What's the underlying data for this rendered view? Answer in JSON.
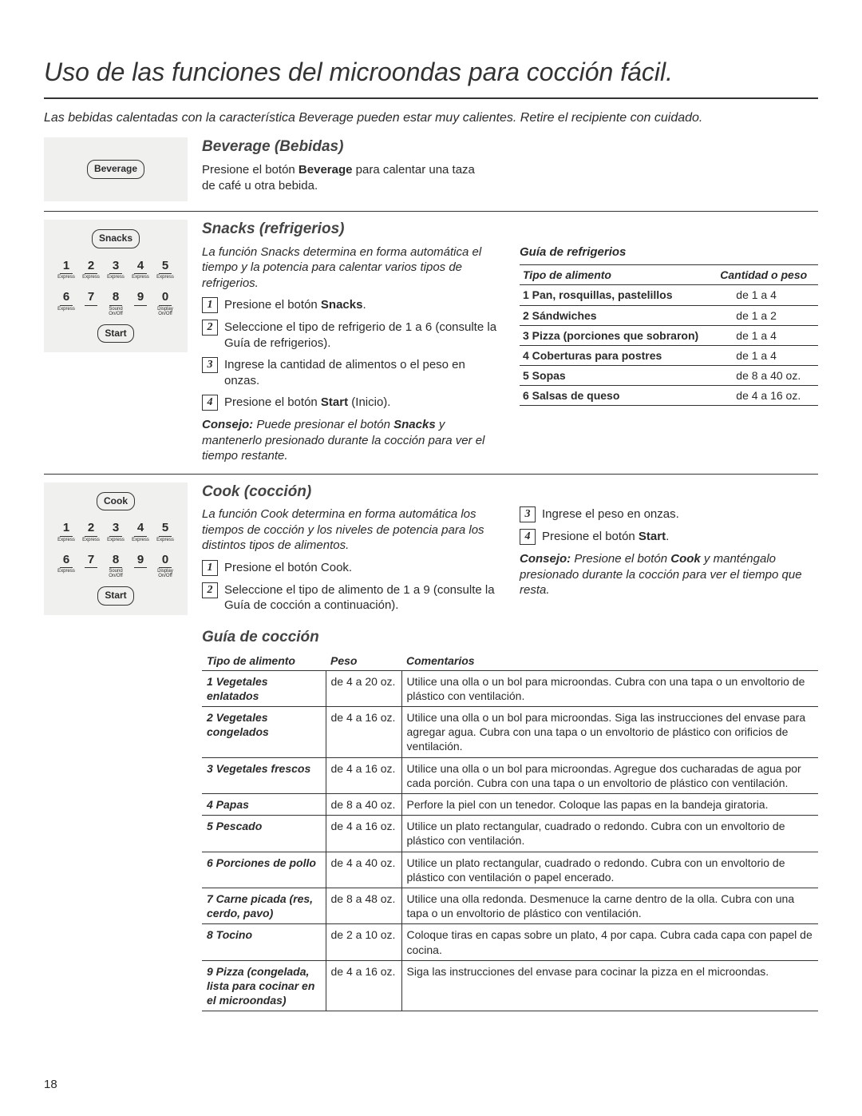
{
  "title": "Uso de las funciones del microondas para cocción fácil.",
  "warning": "Las bebidas calentadas con la característica Beverage pueden estar muy calientes. Retire el recipiente con cuidado.",
  "page_num": "18",
  "beverage": {
    "title": "Beverage (Bebidas)",
    "button": "Beverage",
    "text_pre": "Presione el botón ",
    "text_bold": "Beverage",
    "text_post": " para calentar una taza de café u otra bebida."
  },
  "snacks": {
    "title": "Snacks (refrigerios)",
    "button": "Snacks",
    "start": "Start",
    "intro": "La función Snacks determina en forma automática el tiempo y la potencia para calentar varios tipos de refrigerios.",
    "steps": [
      {
        "n": "1",
        "pre": "Presione el botón ",
        "bold": "Snacks",
        "post": "."
      },
      {
        "n": "2",
        "pre": "Seleccione el tipo de refrigerio de 1 a 6 (consulte la Guía de refrigerios).",
        "bold": "",
        "post": ""
      },
      {
        "n": "3",
        "pre": "Ingrese la cantidad de alimentos o el peso en onzas.",
        "bold": "",
        "post": ""
      },
      {
        "n": "4",
        "pre": "Presione el botón ",
        "bold": "Start",
        "post": " (Inicio)."
      }
    ],
    "consejo_label": "Consejo:",
    "consejo_pre": " Puede presionar el botón ",
    "consejo_bold": "Snacks",
    "consejo_post": " y mantenerlo presionado durante la cocción para ver el tiempo restante.",
    "guide_title": "Guía de refrigerios",
    "th1": "Tipo de alimento",
    "th2": "Cantidad o peso",
    "rows": [
      {
        "food": "1 Pan, rosquillas, pastelillos",
        "qty": "de 1 a 4"
      },
      {
        "food": "2 Sándwiches",
        "qty": "de 1 a 2"
      },
      {
        "food": "3 Pizza (porciones que sobraron)",
        "qty": "de 1 a 4"
      },
      {
        "food": "4 Coberturas para postres",
        "qty": "de 1 a 4"
      },
      {
        "food": "5 Sopas",
        "qty": "de 8 a 40 oz."
      },
      {
        "food": "6 Salsas de queso",
        "qty": "de 4 a 16 oz."
      }
    ]
  },
  "keypad": {
    "row1": [
      {
        "n": "1",
        "l": "Express"
      },
      {
        "n": "2",
        "l": "Express"
      },
      {
        "n": "3",
        "l": "Express"
      },
      {
        "n": "4",
        "l": "Express"
      },
      {
        "n": "5",
        "l": "Express"
      }
    ],
    "row2": [
      {
        "n": "6",
        "l": "Express"
      },
      {
        "n": "7",
        "l": ""
      },
      {
        "n": "8",
        "l": "Sound On/Off"
      },
      {
        "n": "9",
        "l": ""
      },
      {
        "n": "0",
        "l": "Display On/Off"
      }
    ]
  },
  "cook": {
    "title": "Cook (cocción)",
    "button": "Cook",
    "start": "Start",
    "intro": "La función Cook determina en forma automática los tiempos de cocción y los niveles de potencia para los distintos tipos de alimentos.",
    "steps_left": [
      {
        "n": "1",
        "pre": "Presione el botón Cook.",
        "bold": "",
        "post": ""
      },
      {
        "n": "2",
        "pre": "Seleccione el tipo de alimento de 1 a 9 (consulte la Guía de cocción a continuación).",
        "bold": "",
        "post": ""
      }
    ],
    "steps_right": [
      {
        "n": "3",
        "pre": "Ingrese el peso en onzas.",
        "bold": "",
        "post": ""
      },
      {
        "n": "4",
        "pre": "Presione el botón ",
        "bold": "Start",
        "post": "."
      }
    ],
    "consejo_label": "Consejo:",
    "consejo_pre": " Presione el botón ",
    "consejo_bold": "Cook",
    "consejo_post": " y manténgalo presionado durante la cocción para ver el tiempo que resta."
  },
  "cook_guide": {
    "title": "Guía de cocción",
    "th1": "Tipo de alimento",
    "th2": "Peso",
    "th3": "Comentarios",
    "rows": [
      {
        "food": "1 Vegetales enlatados",
        "peso": "de 4 a 20 oz.",
        "com": "Utilice una olla o un bol para microondas. Cubra con una tapa o un envoltorio de plástico con ventilación."
      },
      {
        "food": "2 Vegetales congelados",
        "peso": "de 4 a 16 oz.",
        "com": "Utilice una olla o un bol para microondas. Siga las instrucciones del envase para agregar agua. Cubra con una tapa o un envoltorio de plástico con orificios de ventilación."
      },
      {
        "food": "3 Vegetales frescos",
        "peso": "de 4 a 16 oz.",
        "com": "Utilice una olla o un bol para microondas. Agregue dos cucharadas de agua por cada porción. Cubra con una tapa o un envoltorio de plástico con ventilación."
      },
      {
        "food": "4 Papas",
        "peso": "de 8 a 40 oz.",
        "com": "Perfore la piel con un tenedor. Coloque las papas en la bandeja giratoria."
      },
      {
        "food": "5 Pescado",
        "peso": "de 4 a 16 oz.",
        "com": "Utilice un plato rectangular, cuadrado o redondo. Cubra con un envoltorio de plástico con ventilación."
      },
      {
        "food": "6 Porciones de pollo",
        "peso": "de 4 a 40 oz.",
        "com": "Utilice un plato rectangular, cuadrado o redondo. Cubra con un envoltorio de plástico con ventilación o papel encerado."
      },
      {
        "food": "7 Carne picada (res, cerdo, pavo)",
        "peso": "de 8 a 48 oz.",
        "com": "Utilice una olla redonda. Desmenuce la carne dentro de la olla. Cubra con una tapa o un envoltorio de plástico con ventilación."
      },
      {
        "food": "8 Tocino",
        "peso": "de 2 a 10 oz.",
        "com": "Coloque tiras en capas sobre un plato, 4 por capa. Cubra cada capa con papel de cocina."
      },
      {
        "food": "9 Pizza (congelada, lista para cocinar en el microondas)",
        "peso": "de 4 a 16 oz.",
        "com": "Siga las instrucciones del envase para cocinar la pizza en el microondas."
      }
    ]
  }
}
